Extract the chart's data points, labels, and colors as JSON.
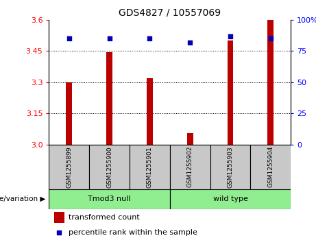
{
  "title": "GDS4827 / 10557069",
  "samples": [
    "GSM1255899",
    "GSM1255900",
    "GSM1255901",
    "GSM1255902",
    "GSM1255903",
    "GSM1255904"
  ],
  "transformed_counts": [
    3.3,
    3.445,
    3.32,
    3.055,
    3.5,
    3.6
  ],
  "percentile_ranks": [
    85,
    85,
    85,
    82,
    87,
    85
  ],
  "groups": [
    {
      "label": "Tmod3 null",
      "start": 0,
      "end": 2
    },
    {
      "label": "wild type",
      "start": 3,
      "end": 5
    }
  ],
  "group_label": "genotype/variation",
  "ylim_left": [
    3.0,
    3.6
  ],
  "ylim_right": [
    0,
    100
  ],
  "yticks_left": [
    3.0,
    3.15,
    3.3,
    3.45,
    3.6
  ],
  "yticks_right": [
    0,
    25,
    50,
    75,
    100
  ],
  "bar_color": "#bb0000",
  "dot_color": "#0000bb",
  "group_color": "#90ee90",
  "header_bg": "#c8c8c8",
  "legend_bar_label": "transformed count",
  "legend_dot_label": "percentile rank within the sample",
  "bar_width": 0.15,
  "base_value": 3.0
}
